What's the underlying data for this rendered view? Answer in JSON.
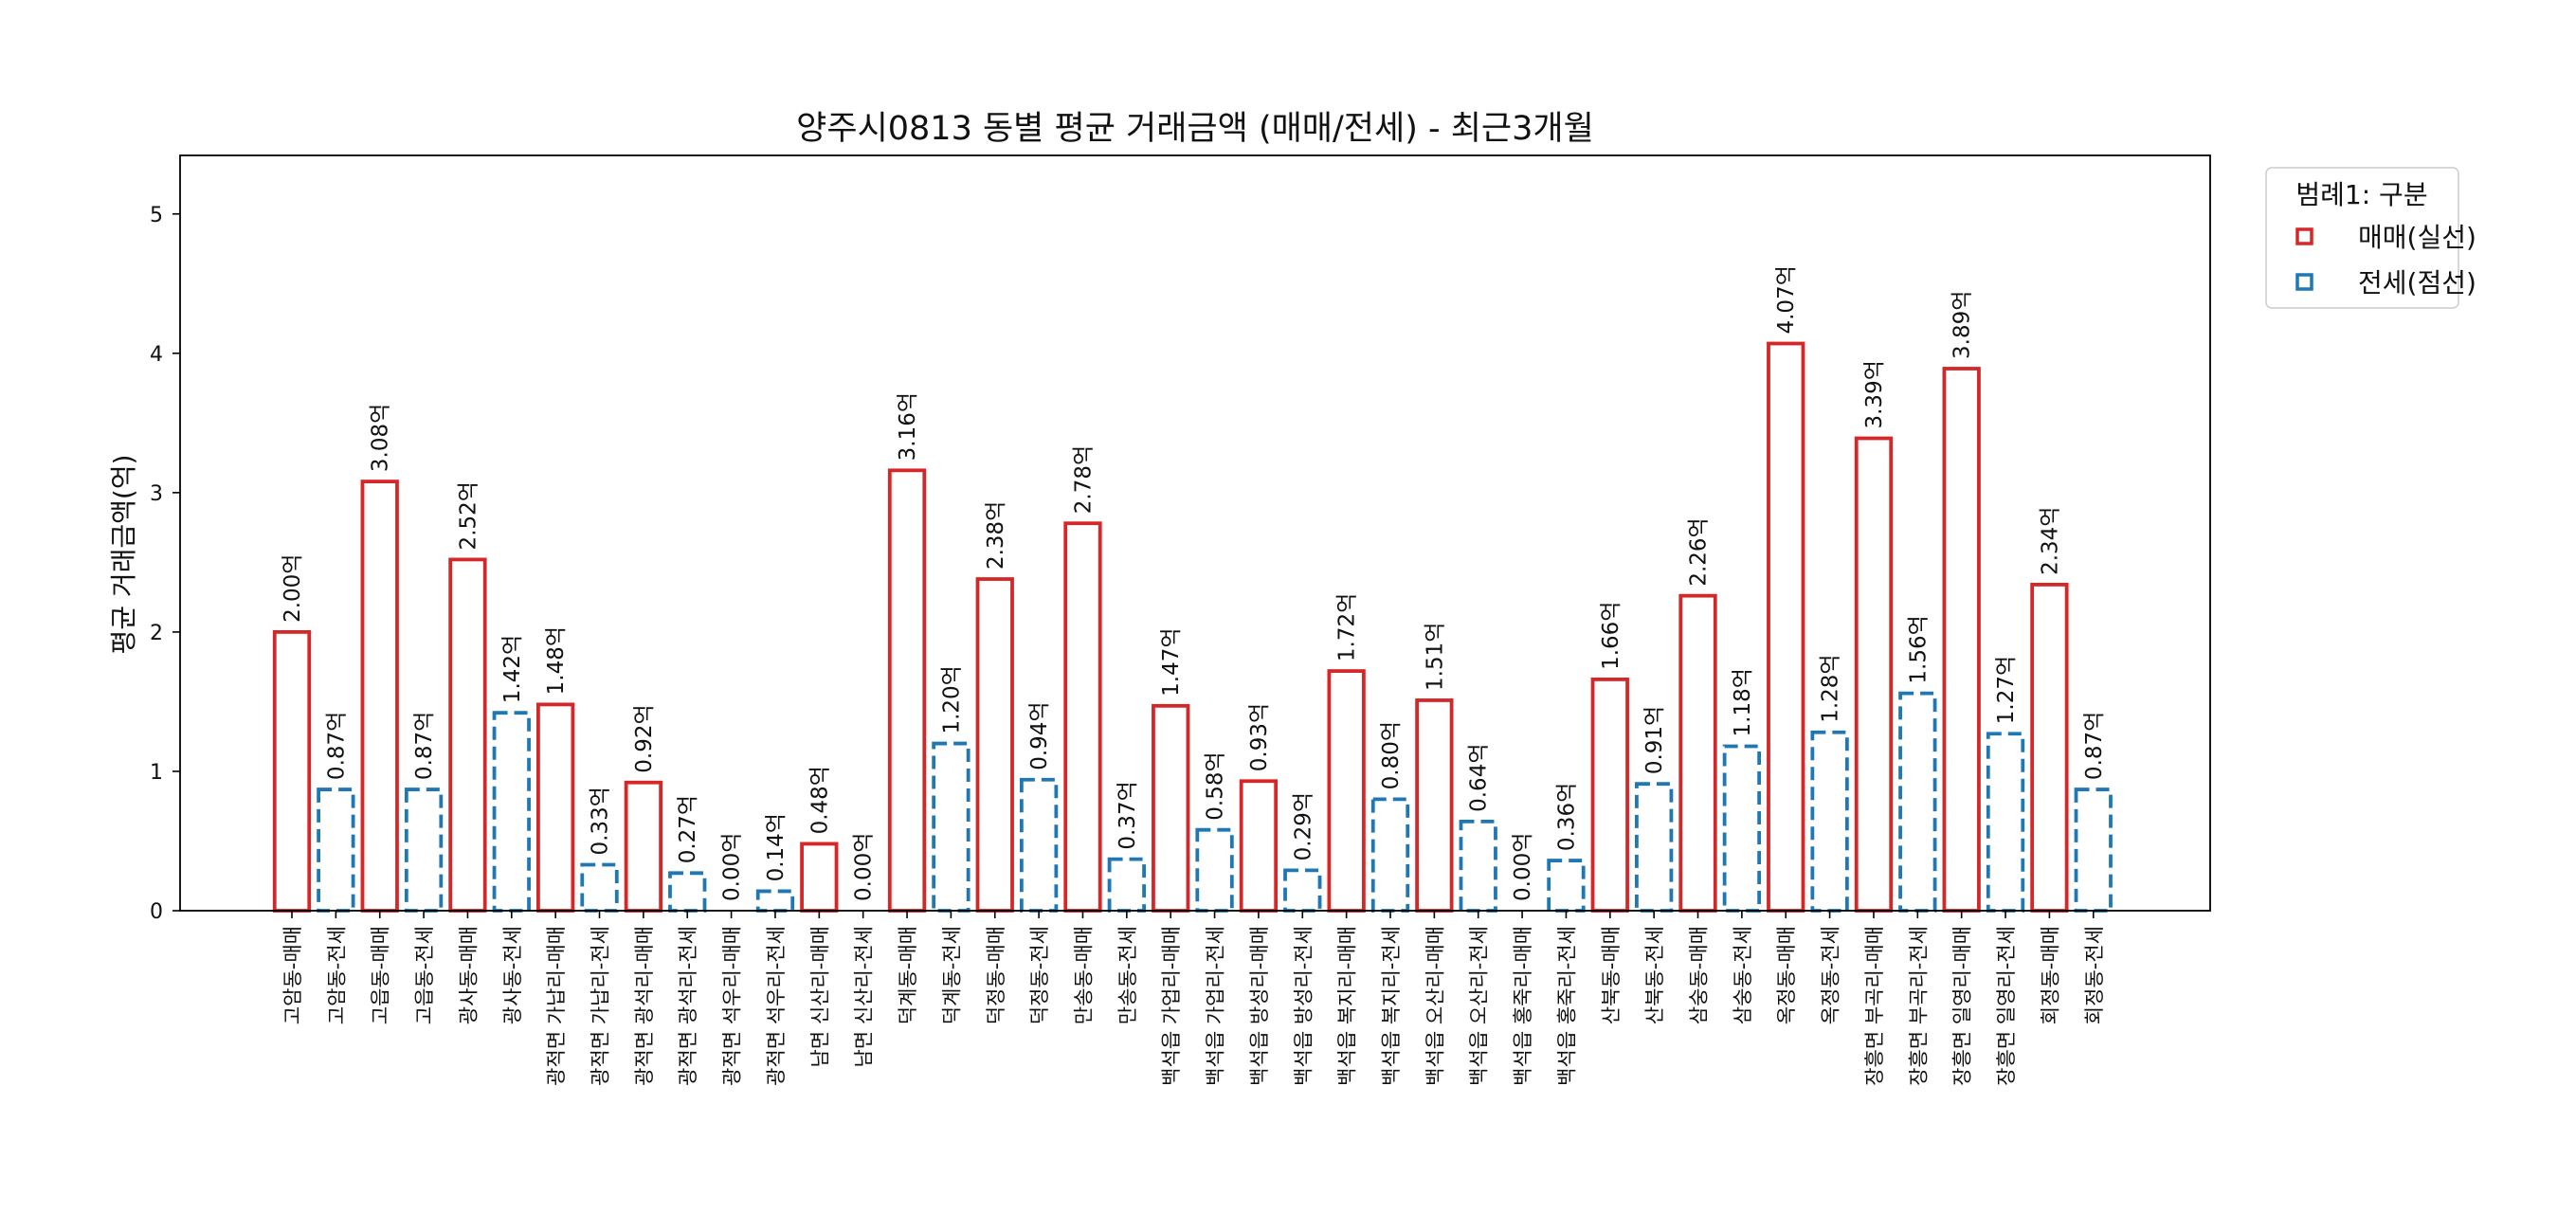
{
  "chart_data": {
    "type": "bar",
    "title": "양주시0813 동별 평균 거래금액 (매매/전세) - 최근3개월",
    "xlabel": "",
    "ylabel": "평균 거래금액(억)",
    "ylim": [
      0,
      5.42
    ],
    "yticks": [
      0,
      1,
      2,
      3,
      4,
      5
    ],
    "grid": false,
    "legend": {
      "title": "범례1: 구분",
      "placement": "outside-top-right",
      "entries": [
        {
          "label": "매매(실선)",
          "color": "#d62728",
          "style": "solid"
        },
        {
          "label": "전세(점선)",
          "color": "#1f77b4",
          "style": "dashed"
        }
      ]
    },
    "value_suffix": "억",
    "categories": [
      "고암동-매매",
      "고암동-전세",
      "고읍동-매매",
      "고읍동-전세",
      "광사동-매매",
      "광사동-전세",
      "광적면 가납리-매매",
      "광적면 가납리-전세",
      "광적면 광석리-매매",
      "광적면 광석리-전세",
      "광적면 석우리-매매",
      "광적면 석우리-전세",
      "남면 신산리-매매",
      "남면 신산리-전세",
      "덕계동-매매",
      "덕계동-전세",
      "덕정동-매매",
      "덕정동-전세",
      "만송동-매매",
      "만송동-전세",
      "백석읍 가업리-매매",
      "백석읍 가업리-전세",
      "백석읍 방성리-매매",
      "백석읍 방성리-전세",
      "백석읍 복지리-매매",
      "백석읍 복지리-전세",
      "백석읍 오산리-매매",
      "백석읍 오산리-전세",
      "백석읍 홍죽리-매매",
      "백석읍 홍죽리-전세",
      "산북동-매매",
      "산북동-전세",
      "삼숭동-매매",
      "삼숭동-전세",
      "옥정동-매매",
      "옥정동-전세",
      "장흥면 부곡리-매매",
      "장흥면 부곡리-전세",
      "장흥면 일영리-매매",
      "장흥면 일영리-전세",
      "회정동-매매",
      "회정동-전세"
    ],
    "values": [
      2.0,
      0.87,
      3.08,
      0.87,
      2.52,
      1.42,
      1.48,
      0.33,
      0.92,
      0.27,
      0.0,
      0.14,
      0.48,
      0.0,
      3.16,
      1.2,
      2.38,
      0.94,
      2.78,
      0.37,
      1.47,
      0.58,
      0.93,
      0.29,
      1.72,
      0.8,
      1.51,
      0.64,
      0.0,
      0.36,
      1.66,
      0.91,
      2.26,
      1.18,
      4.07,
      1.28,
      3.39,
      1.56,
      3.89,
      1.27,
      2.34,
      0.87
    ],
    "kinds": [
      "매매",
      "전세",
      "매매",
      "전세",
      "매매",
      "전세",
      "매매",
      "전세",
      "매매",
      "전세",
      "매매",
      "전세",
      "매매",
      "전세",
      "매매",
      "전세",
      "매매",
      "전세",
      "매매",
      "전세",
      "매매",
      "전세",
      "매매",
      "전세",
      "매매",
      "전세",
      "매매",
      "전세",
      "매매",
      "전세",
      "매매",
      "전세",
      "매매",
      "전세",
      "매매",
      "전세",
      "매매",
      "전세",
      "매매",
      "전세",
      "매매",
      "전세"
    ]
  }
}
